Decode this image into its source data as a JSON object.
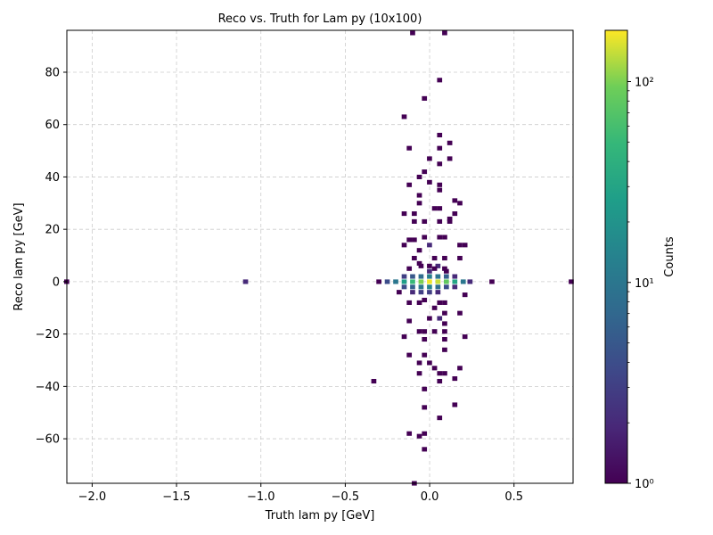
{
  "chart_data": {
    "type": "heatmap",
    "title": "Reco vs. Truth for Lam py (10x100)",
    "xlabel": "Truth lam py [GeV]",
    "ylabel": "Reco lam py [GeV]",
    "xlim": [
      -2.15,
      0.85
    ],
    "ylim": [
      -77,
      96
    ],
    "xticks": [
      -2.0,
      -1.5,
      -1.0,
      -0.5,
      0.0,
      0.5
    ],
    "xtick_labels": [
      "−2.0",
      "−1.5",
      "−1.0",
      "−0.5",
      "0.0",
      "0.5"
    ],
    "yticks": [
      -60,
      -40,
      -20,
      0,
      20,
      40,
      60,
      80
    ],
    "ytick_labels": [
      "−60",
      "−40",
      "−20",
      "0",
      "20",
      "40",
      "60",
      "80"
    ],
    "grid": true,
    "colorbar": {
      "label": "Counts",
      "scale": "log",
      "min": 1,
      "max": 180,
      "ticks": [
        1,
        10,
        100
      ],
      "tick_labels": [
        "10⁰",
        "10¹",
        "10²"
      ],
      "colormap": "viridis"
    },
    "bins": [
      [
        -2.15,
        0,
        1
      ],
      [
        -1.09,
        0,
        2
      ],
      [
        0.84,
        0,
        1
      ],
      [
        -0.3,
        0,
        1
      ],
      [
        -0.25,
        0,
        4
      ],
      [
        -0.2,
        0,
        10
      ],
      [
        -0.15,
        0,
        25
      ],
      [
        -0.1,
        0,
        50
      ],
      [
        -0.05,
        0,
        100
      ],
      [
        0.0,
        0,
        170
      ],
      [
        0.05,
        0,
        140
      ],
      [
        0.1,
        0,
        80
      ],
      [
        0.15,
        0,
        30
      ],
      [
        0.2,
        0,
        10
      ],
      [
        0.24,
        0,
        2
      ],
      [
        0.37,
        0,
        1
      ],
      [
        -0.15,
        2,
        3
      ],
      [
        -0.1,
        2,
        5
      ],
      [
        -0.05,
        2,
        8
      ],
      [
        0.0,
        2,
        12
      ],
      [
        0.05,
        2,
        10
      ],
      [
        0.1,
        2,
        6
      ],
      [
        0.15,
        2,
        2
      ],
      [
        -0.15,
        -2,
        4
      ],
      [
        -0.1,
        -2,
        6
      ],
      [
        -0.05,
        -2,
        10
      ],
      [
        0.0,
        -2,
        14
      ],
      [
        0.05,
        -2,
        8
      ],
      [
        0.1,
        -2,
        4
      ],
      [
        0.15,
        -2,
        2
      ],
      [
        -0.1,
        -4,
        2
      ],
      [
        -0.05,
        -4,
        3
      ],
      [
        0.0,
        -4,
        3
      ],
      [
        0.05,
        -4,
        2
      ],
      [
        0.0,
        4,
        2
      ],
      [
        -0.05,
        6,
        1
      ],
      [
        0.05,
        6,
        2
      ],
      [
        0.1,
        4,
        1
      ],
      [
        -0.1,
        95,
        1
      ],
      [
        0.09,
        95,
        1
      ],
      [
        0.06,
        77,
        1
      ],
      [
        -0.03,
        70,
        1
      ],
      [
        -0.15,
        63,
        1
      ],
      [
        0.06,
        56,
        1
      ],
      [
        0.12,
        53,
        1
      ],
      [
        -0.12,
        51,
        1
      ],
      [
        0.06,
        51,
        1
      ],
      [
        0.0,
        47,
        1
      ],
      [
        0.12,
        47,
        1
      ],
      [
        0.06,
        45,
        1
      ],
      [
        -0.03,
        42,
        1
      ],
      [
        -0.06,
        40,
        1
      ],
      [
        0.0,
        38,
        1
      ],
      [
        -0.12,
        37,
        1
      ],
      [
        0.06,
        37,
        1
      ],
      [
        0.06,
        35,
        1
      ],
      [
        -0.06,
        33,
        1
      ],
      [
        0.15,
        31,
        1
      ],
      [
        -0.06,
        30,
        1
      ],
      [
        0.18,
        30,
        1
      ],
      [
        0.03,
        28,
        1
      ],
      [
        0.06,
        28,
        1
      ],
      [
        -0.15,
        26,
        1
      ],
      [
        -0.09,
        26,
        1
      ],
      [
        0.15,
        26,
        1
      ],
      [
        0.12,
        24,
        1
      ],
      [
        -0.09,
        23,
        1
      ],
      [
        -0.03,
        23,
        1
      ],
      [
        0.06,
        23,
        1
      ],
      [
        0.12,
        23,
        1
      ],
      [
        -0.03,
        17,
        1
      ],
      [
        0.06,
        17,
        1
      ],
      [
        0.09,
        17,
        1
      ],
      [
        -0.12,
        16,
        1
      ],
      [
        -0.09,
        16,
        1
      ],
      [
        -0.15,
        14,
        1
      ],
      [
        0.0,
        14,
        2
      ],
      [
        0.18,
        14,
        1
      ],
      [
        0.21,
        14,
        1
      ],
      [
        -0.06,
        12,
        1
      ],
      [
        -0.09,
        9,
        1
      ],
      [
        0.03,
        9,
        1
      ],
      [
        0.09,
        9,
        1
      ],
      [
        0.18,
        9,
        1
      ],
      [
        -0.06,
        7,
        1
      ],
      [
        -0.12,
        5,
        1
      ],
      [
        0.0,
        6,
        1
      ],
      [
        0.03,
        5,
        1
      ],
      [
        0.09,
        5,
        1
      ],
      [
        -0.18,
        -4,
        1
      ],
      [
        -0.12,
        -8,
        1
      ],
      [
        -0.06,
        -8,
        1
      ],
      [
        -0.03,
        -7,
        1
      ],
      [
        0.06,
        -8,
        1
      ],
      [
        0.09,
        -8,
        1
      ],
      [
        0.21,
        -5,
        1
      ],
      [
        0.03,
        -10,
        1
      ],
      [
        -0.12,
        -15,
        1
      ],
      [
        0.0,
        -14,
        1
      ],
      [
        0.06,
        -14,
        2
      ],
      [
        0.09,
        -16,
        1
      ],
      [
        0.09,
        -12,
        1
      ],
      [
        0.18,
        -12,
        1
      ],
      [
        -0.06,
        -19,
        1
      ],
      [
        -0.03,
        -19,
        1
      ],
      [
        0.03,
        -19,
        1
      ],
      [
        0.09,
        -19,
        1
      ],
      [
        -0.15,
        -21,
        1
      ],
      [
        0.21,
        -21,
        1
      ],
      [
        -0.03,
        -22,
        1
      ],
      [
        0.09,
        -22,
        1
      ],
      [
        0.09,
        -26,
        1
      ],
      [
        -0.12,
        -28,
        1
      ],
      [
        -0.03,
        -28,
        1
      ],
      [
        -0.06,
        -31,
        1
      ],
      [
        0.0,
        -31,
        1
      ],
      [
        0.03,
        -33,
        1
      ],
      [
        0.18,
        -33,
        1
      ],
      [
        -0.06,
        -35,
        1
      ],
      [
        0.06,
        -35,
        1
      ],
      [
        0.09,
        -35,
        1
      ],
      [
        0.15,
        -37,
        1
      ],
      [
        -0.33,
        -38,
        1
      ],
      [
        0.06,
        -38,
        1
      ],
      [
        -0.03,
        -41,
        1
      ],
      [
        0.15,
        -47,
        1
      ],
      [
        -0.03,
        -48,
        1
      ],
      [
        0.06,
        -52,
        1
      ],
      [
        -0.12,
        -58,
        1
      ],
      [
        -0.03,
        -58,
        1
      ],
      [
        -0.06,
        -59,
        1
      ],
      [
        -0.03,
        -64,
        1
      ],
      [
        -0.09,
        -77,
        1
      ]
    ]
  }
}
